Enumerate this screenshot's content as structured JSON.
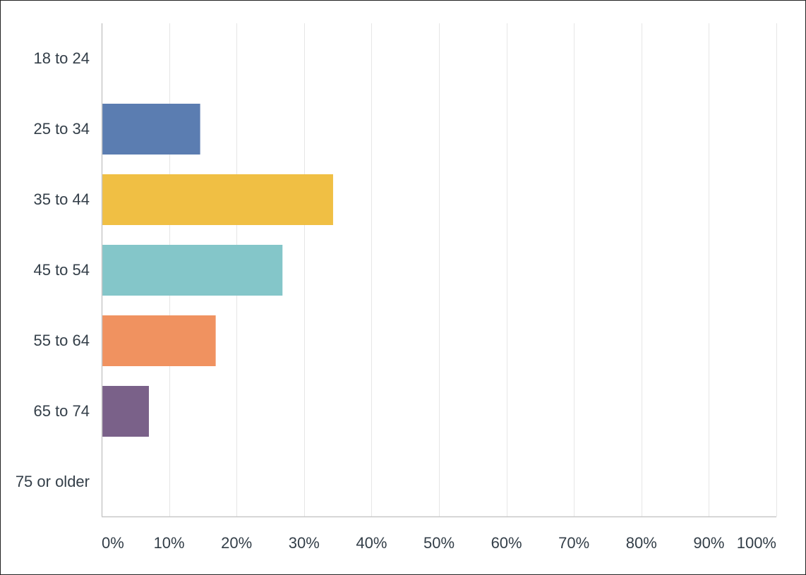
{
  "chart_data": {
    "type": "bar",
    "orientation": "horizontal",
    "title": "",
    "xlabel": "",
    "ylabel": "",
    "categories": [
      "18 to 24",
      "25 to 34",
      "35 to 44",
      "45 to 54",
      "55 to 64",
      "65 to 74",
      "75 or older"
    ],
    "values": [
      0,
      14.5,
      34.2,
      26.7,
      16.8,
      6.9,
      0
    ],
    "value_unit": "%",
    "colors": [
      "#5b7db1",
      "#5b7db1",
      "#f0bf44",
      "#84c6c9",
      "#f09260",
      "#7a6189",
      "#5b7db1"
    ],
    "xlim": [
      0,
      100
    ],
    "ticks": [
      0,
      10,
      20,
      30,
      40,
      50,
      60,
      70,
      80,
      90,
      100
    ],
    "tick_labels": [
      "0%",
      "10%",
      "20%",
      "30%",
      "40%",
      "50%",
      "60%",
      "70%",
      "80%",
      "90%",
      "100%"
    ],
    "grid": true,
    "legend": "none",
    "grid_color": "#e6e6e6",
    "axis_color": "#c8c8c8",
    "text_color": "#333e48"
  }
}
